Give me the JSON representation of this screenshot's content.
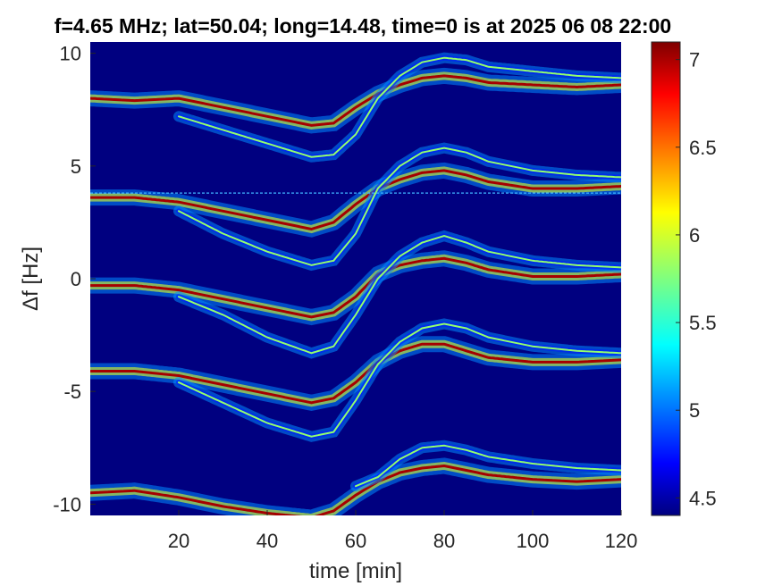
{
  "chart_data": {
    "type": "heatmap",
    "title": "f=4.65 MHz;  lat=50.04; long=14.48, time=0 is at 2025 06 08 22:00",
    "xlabel": "time [min]",
    "ylabel": "Δf [Hz]",
    "xlim": [
      0,
      120
    ],
    "ylim": [
      -10.5,
      10.5
    ],
    "xticks": [
      20,
      40,
      60,
      80,
      100,
      120
    ],
    "xtick_labels": [
      "20",
      "40",
      "60",
      "80",
      "100",
      "120"
    ],
    "yticks": [
      -10,
      -5,
      0,
      5,
      10
    ],
    "ytick_labels": [
      "-10",
      "-5",
      "0",
      "5",
      "10"
    ],
    "colorbar": {
      "range": [
        4.4,
        7.1
      ],
      "ticks": [
        4.5,
        5,
        5.5,
        6,
        6.5,
        7
      ],
      "tick_labels": [
        "4.5",
        "5",
        "5.5",
        "6",
        "6.5",
        "7"
      ],
      "colormap": "jet"
    },
    "background_value": 4.4,
    "reference_line": {
      "y": 3.8
    },
    "traces": [
      {
        "base": 8.0,
        "t": [
          0,
          10,
          20,
          30,
          40,
          50,
          55,
          60,
          65,
          70,
          75,
          80,
          85,
          90,
          100,
          110,
          120
        ],
        "f": [
          8.0,
          7.9,
          8.0,
          7.6,
          7.2,
          6.8,
          6.9,
          7.6,
          8.2,
          8.6,
          8.9,
          9.0,
          8.9,
          8.7,
          8.6,
          8.5,
          8.6
        ],
        "intensity": 7.0
      },
      {
        "base": 8.0,
        "t": [
          20,
          30,
          40,
          50,
          55,
          60,
          65,
          70,
          75,
          80,
          85,
          90,
          100,
          110,
          120
        ],
        "f": [
          7.2,
          6.6,
          6.0,
          5.4,
          5.5,
          6.4,
          8.0,
          9.0,
          9.6,
          9.8,
          9.7,
          9.4,
          9.2,
          9.0,
          8.9
        ],
        "intensity": 5.8
      },
      {
        "base": 3.6,
        "t": [
          0,
          10,
          20,
          30,
          40,
          50,
          55,
          60,
          65,
          70,
          75,
          80,
          85,
          90,
          100,
          110,
          120
        ],
        "f": [
          3.6,
          3.6,
          3.4,
          3.0,
          2.6,
          2.2,
          2.5,
          3.3,
          4.0,
          4.4,
          4.7,
          4.8,
          4.6,
          4.3,
          4.0,
          4.0,
          4.1
        ],
        "intensity": 7.0
      },
      {
        "base": 3.6,
        "t": [
          20,
          30,
          40,
          50,
          55,
          60,
          65,
          70,
          75,
          80,
          85,
          90,
          100,
          110,
          120
        ],
        "f": [
          3.0,
          2.0,
          1.2,
          0.6,
          0.8,
          2.0,
          4.0,
          5.0,
          5.6,
          5.8,
          5.6,
          5.2,
          4.8,
          4.6,
          4.5
        ],
        "intensity": 5.8
      },
      {
        "base": -0.4,
        "t": [
          0,
          10,
          20,
          30,
          40,
          50,
          55,
          60,
          65,
          70,
          75,
          80,
          85,
          90,
          100,
          110,
          120
        ],
        "f": [
          -0.3,
          -0.3,
          -0.5,
          -0.9,
          -1.3,
          -1.7,
          -1.5,
          -0.8,
          0.2,
          0.6,
          0.8,
          0.9,
          0.7,
          0.4,
          0.1,
          0.1,
          0.2
        ],
        "intensity": 7.0
      },
      {
        "base": -0.4,
        "t": [
          20,
          30,
          40,
          50,
          55,
          60,
          65,
          70,
          75,
          80,
          85,
          90,
          100,
          110,
          120
        ],
        "f": [
          -0.8,
          -1.6,
          -2.6,
          -3.3,
          -3.0,
          -1.6,
          0.0,
          1.0,
          1.6,
          1.9,
          1.6,
          1.2,
          0.8,
          0.6,
          0.5
        ],
        "intensity": 5.8
      },
      {
        "base": -4.1,
        "t": [
          0,
          10,
          20,
          30,
          40,
          50,
          55,
          60,
          65,
          70,
          75,
          80,
          85,
          90,
          100,
          110,
          120
        ],
        "f": [
          -4.1,
          -4.1,
          -4.3,
          -4.7,
          -5.1,
          -5.5,
          -5.3,
          -4.6,
          -3.7,
          -3.2,
          -2.9,
          -2.9,
          -3.2,
          -3.5,
          -3.7,
          -3.7,
          -3.6
        ],
        "intensity": 7.0
      },
      {
        "base": -4.1,
        "t": [
          20,
          30,
          40,
          50,
          55,
          60,
          65,
          70,
          75,
          80,
          85,
          90,
          100,
          110,
          120
        ],
        "f": [
          -4.6,
          -5.5,
          -6.4,
          -7.0,
          -6.8,
          -5.4,
          -3.8,
          -2.8,
          -2.2,
          -2.0,
          -2.2,
          -2.6,
          -3.0,
          -3.2,
          -3.3
        ],
        "intensity": 5.8
      },
      {
        "base": -9.5,
        "t": [
          0,
          10,
          20,
          30,
          40,
          50,
          55,
          60,
          65,
          70,
          75,
          80,
          85,
          90,
          100,
          110,
          120
        ],
        "f": [
          -9.5,
          -9.4,
          -9.7,
          -10.1,
          -10.4,
          -10.6,
          -10.3,
          -9.6,
          -9.0,
          -8.6,
          -8.4,
          -8.3,
          -8.5,
          -8.7,
          -8.9,
          -9.0,
          -8.9
        ],
        "intensity": 7.0
      },
      {
        "base": -9.5,
        "t": [
          60,
          65,
          70,
          75,
          80,
          85,
          90,
          100,
          110,
          120
        ],
        "f": [
          -9.2,
          -8.8,
          -8.0,
          -7.5,
          -7.4,
          -7.6,
          -7.9,
          -8.2,
          -8.4,
          -8.5
        ],
        "intensity": 5.8
      }
    ]
  }
}
